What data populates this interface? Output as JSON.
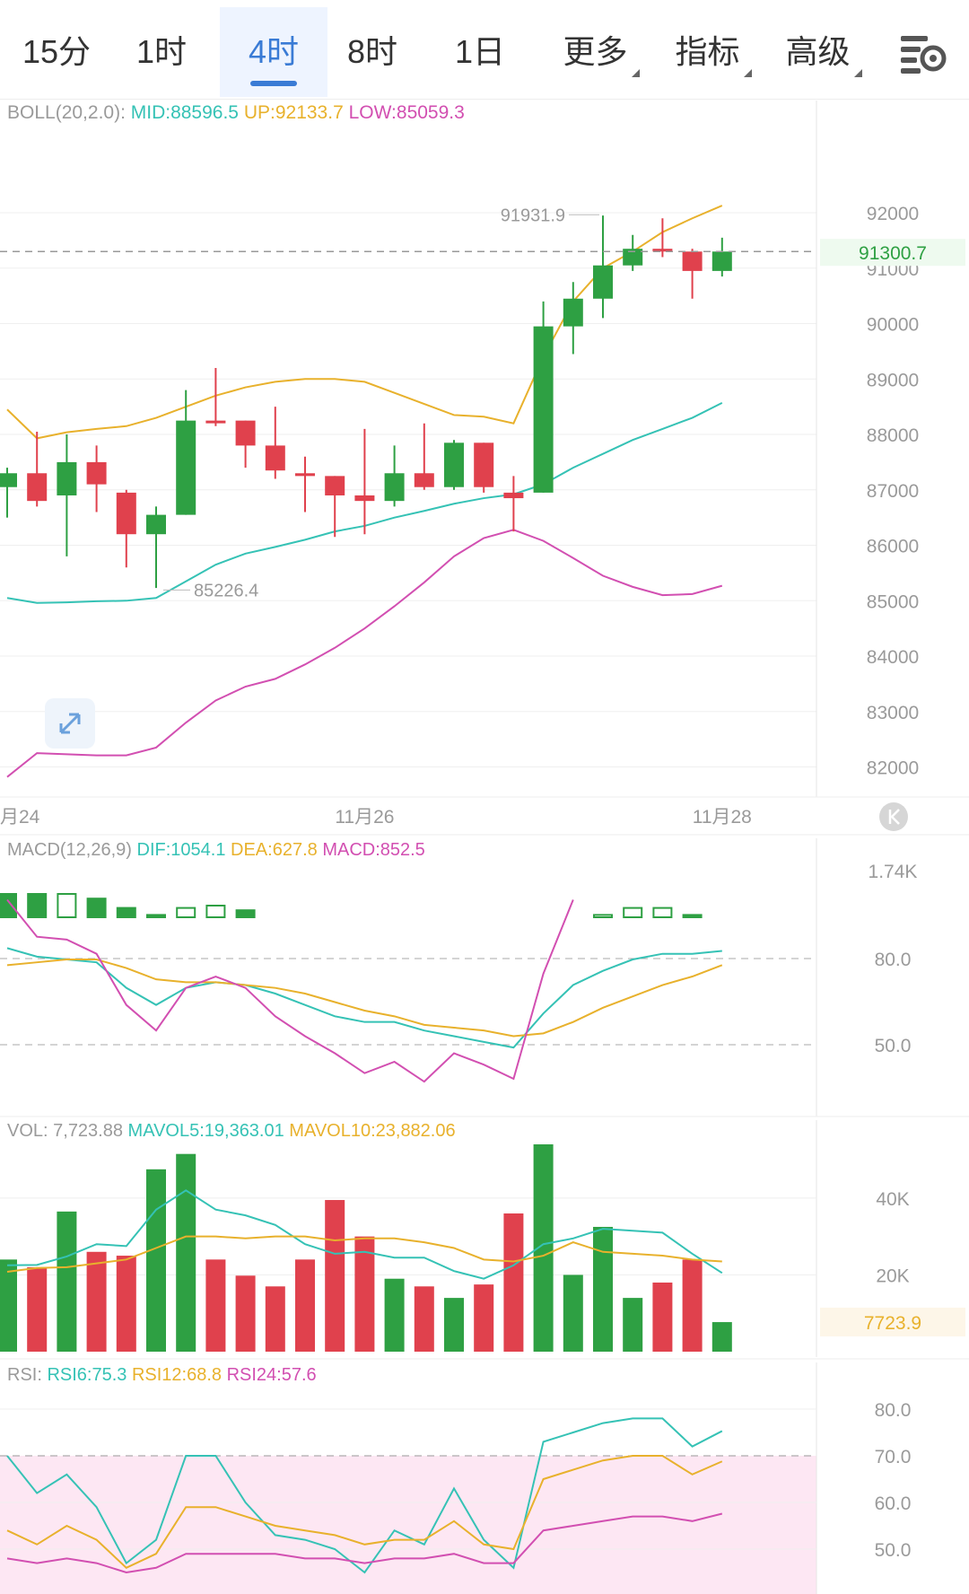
{
  "tabs": [
    {
      "label": "15分",
      "active": false,
      "more": false
    },
    {
      "label": "1时",
      "active": false,
      "more": false
    },
    {
      "label": "4时",
      "active": true,
      "more": false
    },
    {
      "label": "8时",
      "active": false,
      "more": false
    },
    {
      "label": "1日",
      "active": false,
      "more": false
    },
    {
      "label": "更多",
      "active": false,
      "more": true
    },
    {
      "label": "指标",
      "active": false,
      "more": true
    },
    {
      "label": "高级",
      "active": false,
      "more": true
    }
  ],
  "colors": {
    "up": "#e0414d",
    "down": "#2ea043",
    "teal": "#35c2b5",
    "yellow": "#e8b12c",
    "magenta": "#d24fb1",
    "grid": "#efefef",
    "axis_text": "#9a9a9a",
    "rsi_band": "#fde7f3"
  },
  "chart_data": [
    {
      "type": "candlestick",
      "name": "price",
      "indicator": {
        "name": "BOLL(20,2.0):",
        "items": [
          {
            "label": "MID:88596.5",
            "color": "teal"
          },
          {
            "label": "UP:92133.7",
            "color": "yellow"
          },
          {
            "label": "LOW:85059.3",
            "color": "magenta"
          }
        ]
      },
      "ylim": [
        81750,
        92600
      ],
      "y_ticks": [
        "92000",
        "91000",
        "90000",
        "89000",
        "88000",
        "87000",
        "86000",
        "85000",
        "84000",
        "83000",
        "82000"
      ],
      "current_price": {
        "value": 91300.7,
        "label": "91300.7"
      },
      "max_marker": {
        "value": 91931.9,
        "index": 20,
        "label": "91931.9"
      },
      "min_marker": {
        "value": 85226.4,
        "index": 5,
        "label": "85226.4"
      },
      "x_labels": [
        {
          "index": 0,
          "label": "月24"
        },
        {
          "index": 12,
          "label": "11月26"
        },
        {
          "index": 24,
          "label": "11月28"
        }
      ],
      "candles": [
        {
          "o": 87050,
          "h": 87400,
          "l": 86500,
          "c": 87300
        },
        {
          "o": 87300,
          "h": 88050,
          "l": 86700,
          "c": 86800
        },
        {
          "o": 86900,
          "h": 88000,
          "l": 85800,
          "c": 87500
        },
        {
          "o": 87500,
          "h": 87800,
          "l": 86600,
          "c": 87100
        },
        {
          "o": 86950,
          "h": 87000,
          "l": 85600,
          "c": 86200
        },
        {
          "o": 86200,
          "h": 86700,
          "l": 85230,
          "c": 86550
        },
        {
          "o": 86550,
          "h": 88800,
          "l": 86550,
          "c": 88250
        },
        {
          "o": 88250,
          "h": 89200,
          "l": 88150,
          "c": 88220
        },
        {
          "o": 88250,
          "h": 88250,
          "l": 87400,
          "c": 87800
        },
        {
          "o": 87800,
          "h": 88500,
          "l": 87200,
          "c": 87350
        },
        {
          "o": 87300,
          "h": 87600,
          "l": 86600,
          "c": 87250
        },
        {
          "o": 87250,
          "h": 87250,
          "l": 86150,
          "c": 86900
        },
        {
          "o": 86900,
          "h": 88100,
          "l": 86200,
          "c": 86800
        },
        {
          "o": 86800,
          "h": 87800,
          "l": 86700,
          "c": 87300
        },
        {
          "o": 87300,
          "h": 88200,
          "l": 87000,
          "c": 87050
        },
        {
          "o": 87050,
          "h": 87900,
          "l": 87000,
          "c": 87850
        },
        {
          "o": 87850,
          "h": 87850,
          "l": 86950,
          "c": 87050
        },
        {
          "o": 86950,
          "h": 87250,
          "l": 86250,
          "c": 86850
        },
        {
          "o": 86950,
          "h": 90400,
          "l": 86950,
          "c": 89950
        },
        {
          "o": 89950,
          "h": 90750,
          "l": 89450,
          "c": 90450
        },
        {
          "o": 90450,
          "h": 91950,
          "l": 90100,
          "c": 91050
        },
        {
          "o": 91050,
          "h": 91600,
          "l": 90950,
          "c": 91350
        },
        {
          "o": 91350,
          "h": 91900,
          "l": 91200,
          "c": 91300
        },
        {
          "o": 91300,
          "h": 91350,
          "l": 90450,
          "c": 90950
        },
        {
          "o": 90950,
          "h": 91550,
          "l": 90850,
          "c": 91300
        }
      ],
      "lines": [
        {
          "name": "MID",
          "color": "teal",
          "values": [
            85050,
            84960,
            84970,
            84990,
            85000,
            85050,
            85350,
            85650,
            85850,
            85970,
            86100,
            86250,
            86350,
            86500,
            86620,
            86750,
            86850,
            86920,
            87100,
            87400,
            87650,
            87900,
            88100,
            88300,
            88570
          ]
        },
        {
          "name": "UP",
          "color": "yellow",
          "values": [
            88450,
            87930,
            88040,
            88100,
            88150,
            88300,
            88500,
            88700,
            88850,
            88950,
            89000,
            89000,
            88950,
            88750,
            88550,
            88350,
            88320,
            88200,
            89400,
            90400,
            91000,
            91300,
            91650,
            91900,
            92130
          ]
        },
        {
          "name": "LOW",
          "color": "magenta",
          "values": [
            81820,
            82250,
            82230,
            82210,
            82210,
            82350,
            82800,
            83200,
            83450,
            83590,
            83850,
            84150,
            84500,
            84900,
            85330,
            85800,
            86130,
            86280,
            86080,
            85770,
            85450,
            85250,
            85100,
            85120,
            85270
          ]
        }
      ]
    },
    {
      "type": "macd",
      "name": "MACD",
      "indicator": {
        "name": "MACD(12,26,9)",
        "items": [
          {
            "label": "DIF:1054.1",
            "color": "teal"
          },
          {
            "label": "DEA:627.8",
            "color": "yellow"
          },
          {
            "label": "MACD:852.5",
            "color": "magenta"
          }
        ]
      },
      "y_ticks": [
        {
          "label": "1.74K",
          "v": 1740
        },
        {
          "label": "80.0",
          "v": 80
        },
        {
          "label": "50.0",
          "v": 50
        }
      ],
      "ylim": [
        0,
        100
      ],
      "histogram": [
        {
          "v": 10,
          "filled": true
        },
        {
          "v": 10,
          "filled": true
        },
        {
          "v": 10,
          "filled": false
        },
        {
          "v": 8,
          "filled": true
        },
        {
          "v": 4,
          "filled": true
        },
        {
          "v": 1,
          "filled": true
        },
        {
          "v": 4,
          "filled": false
        },
        {
          "v": 5,
          "filled": false
        },
        {
          "v": 3,
          "filled": true
        },
        null,
        null,
        null,
        null,
        null,
        null,
        null,
        null,
        null,
        null,
        null,
        {
          "v": 1,
          "filled": false
        },
        {
          "v": 4,
          "filled": false
        },
        {
          "v": 4,
          "filled": false
        },
        {
          "v": 1,
          "filled": true
        },
        null
      ],
      "lines": [
        {
          "name": "DIF",
          "color": "teal",
          "values": [
            84,
            81,
            80,
            79,
            70,
            64,
            70,
            72,
            71,
            68,
            64,
            60,
            58,
            58,
            55,
            53,
            51,
            49,
            61,
            71,
            76,
            80,
            82,
            82,
            83
          ]
        },
        {
          "name": "DEA",
          "color": "yellow",
          "values": [
            78,
            79,
            80,
            80,
            77,
            73,
            72,
            72,
            71,
            70,
            68,
            65,
            62,
            60,
            57,
            56,
            55,
            53,
            54,
            58,
            63,
            67,
            71,
            74,
            78
          ]
        },
        {
          "name": "MACD",
          "color": "magenta",
          "values": [
            101,
            88,
            87,
            82,
            64,
            55,
            70,
            74,
            70,
            60,
            53,
            47,
            40,
            44,
            37,
            47,
            43,
            38,
            75,
            101,
            null,
            null,
            null,
            null,
            null
          ]
        }
      ]
    },
    {
      "type": "volume",
      "name": "VOL",
      "indicator": {
        "name": "VOL: 7,723.88",
        "items": [
          {
            "label": "MAVOL5:19,363.01",
            "color": "teal"
          },
          {
            "label": "MAVOL10:23,882.06",
            "color": "yellow"
          }
        ]
      },
      "y_ticks": [
        {
          "label": "40K",
          "v": 40000
        },
        {
          "label": "20K",
          "v": 20000
        }
      ],
      "ylim": [
        0,
        55000
      ],
      "current": {
        "value": 7723.9,
        "label": "7723.9"
      },
      "bars": [
        24000,
        22000,
        36500,
        26000,
        25000,
        47500,
        51500,
        24000,
        19800,
        17000,
        24000,
        39500,
        30000,
        19000,
        17000,
        14000,
        17500,
        36000,
        54000,
        20000,
        32500,
        14000,
        18000,
        24000,
        7700
      ],
      "lines": [
        {
          "name": "MAVOL5",
          "color": "teal",
          "values": [
            22500,
            22600,
            24800,
            28000,
            27500,
            37000,
            42000,
            37000,
            35500,
            33000,
            28000,
            25500,
            26000,
            24500,
            24500,
            21000,
            19000,
            22500,
            28000,
            29500,
            32000,
            31500,
            31000,
            25500,
            20500
          ]
        },
        {
          "name": "MAVOL10",
          "color": "yellow",
          "values": [
            20800,
            21800,
            22000,
            23000,
            24000,
            27000,
            30000,
            30000,
            29500,
            30000,
            30000,
            29000,
            29500,
            29500,
            28500,
            27000,
            24000,
            23500,
            25000,
            28500,
            26000,
            25500,
            25000,
            24000,
            23500
          ]
        }
      ]
    },
    {
      "type": "rsi",
      "name": "RSI",
      "indicator": {
        "name": "RSI:",
        "items": [
          {
            "label": "RSI6:75.3",
            "color": "teal"
          },
          {
            "label": "RSI12:68.8",
            "color": "yellow"
          },
          {
            "label": "RSI24:57.6",
            "color": "magenta"
          }
        ]
      },
      "y_ticks": [
        "80.0",
        "70.0",
        "60.0",
        "50.0"
      ],
      "ylim": [
        42,
        88
      ],
      "band": [
        30,
        70
      ],
      "lines": [
        {
          "name": "RSI6",
          "color": "teal",
          "values": [
            70,
            62,
            66,
            59,
            47,
            52,
            70,
            70,
            60,
            53,
            52,
            50,
            45,
            54,
            51,
            63,
            52,
            46,
            73,
            75,
            77,
            78,
            78,
            72,
            75.3
          ]
        },
        {
          "name": "RSI12",
          "color": "yellow",
          "values": [
            54,
            51,
            55,
            52,
            46,
            49,
            59,
            59,
            57,
            55,
            54,
            53,
            51,
            52,
            52,
            56,
            51,
            50,
            65,
            67,
            69,
            70,
            70,
            66,
            68.8
          ]
        },
        {
          "name": "RSI24",
          "color": "magenta",
          "values": [
            48,
            47,
            48,
            47,
            45,
            46,
            49,
            49,
            49,
            49,
            48,
            48,
            47,
            48,
            48,
            49,
            47,
            47,
            54,
            55,
            56,
            57,
            57,
            56,
            57.6
          ]
        }
      ]
    }
  ]
}
